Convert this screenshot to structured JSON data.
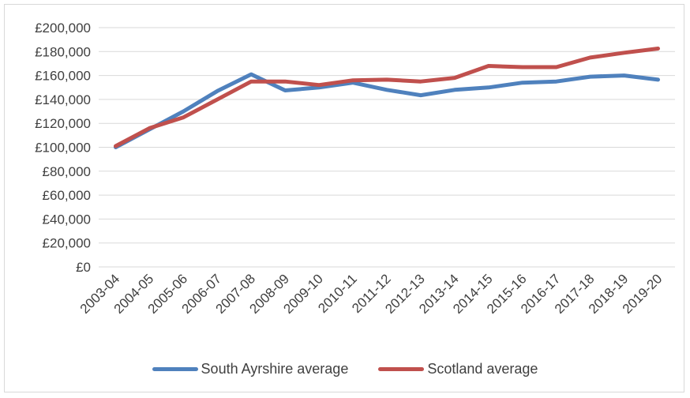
{
  "chart_data": {
    "type": "line",
    "categories": [
      "2003-04",
      "2004-05",
      "2005-06",
      "2006-07",
      "2007-08",
      "2008-09",
      "2009-10",
      "2010-11",
      "2011-12",
      "2012-13",
      "2013-14",
      "2014-15",
      "2015-16",
      "2016-17",
      "2017-18",
      "2018-19",
      "2019-20"
    ],
    "series": [
      {
        "name": "South Ayrshire average",
        "color": "#4f81bd",
        "values": [
          100000,
          115000,
          130000,
          147000,
          161000,
          147500,
          150000,
          154000,
          148000,
          143500,
          148000,
          150000,
          154000,
          155000,
          159000,
          160000,
          156500
        ]
      },
      {
        "name": "Scotland average",
        "color": "#c0504d",
        "values": [
          101000,
          116000,
          125000,
          140000,
          155000,
          155000,
          152000,
          156000,
          156500,
          155000,
          158000,
          168000,
          167000,
          167000,
          175000,
          179000,
          182500
        ]
      }
    ],
    "y_tick_labels": [
      "£0",
      "£20,000",
      "£40,000",
      "£60,000",
      "£80,000",
      "£100,000",
      "£120,000",
      "£140,000",
      "£160,000",
      "£180,000",
      "£200,000"
    ],
    "ylim": [
      0,
      200000
    ],
    "grid": true,
    "legend_position": "bottom"
  }
}
